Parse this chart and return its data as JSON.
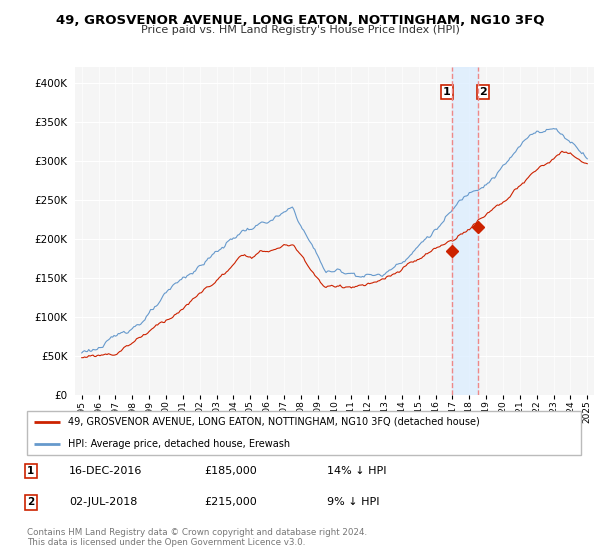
{
  "title": "49, GROSVENOR AVENUE, LONG EATON, NOTTINGHAM, NG10 3FQ",
  "subtitle": "Price paid vs. HM Land Registry's House Price Index (HPI)",
  "ylim": [
    0,
    420000
  ],
  "yticks": [
    0,
    50000,
    100000,
    150000,
    200000,
    250000,
    300000,
    350000,
    400000
  ],
  "legend_line1": "49, GROSVENOR AVENUE, LONG EATON, NOTTINGHAM, NG10 3FQ (detached house)",
  "legend_line2": "HPI: Average price, detached house, Erewash",
  "transaction1_date": "16-DEC-2016",
  "transaction1_price": 185000,
  "transaction1_pct": "14% ↓ HPI",
  "transaction2_date": "02-JUL-2018",
  "transaction2_price": 215000,
  "transaction2_pct": "9% ↓ HPI",
  "vline_x1": 2016.96,
  "vline_x2": 2018.5,
  "hpi_color": "#6699cc",
  "price_color": "#cc2200",
  "vline_color": "#ee8888",
  "shade_color": "#ddeeff",
  "footer": "Contains HM Land Registry data © Crown copyright and database right 2024.\nThis data is licensed under the Open Government Licence v3.0.",
  "background_color": "#ffffff",
  "plot_bg_color": "#f5f5f5"
}
